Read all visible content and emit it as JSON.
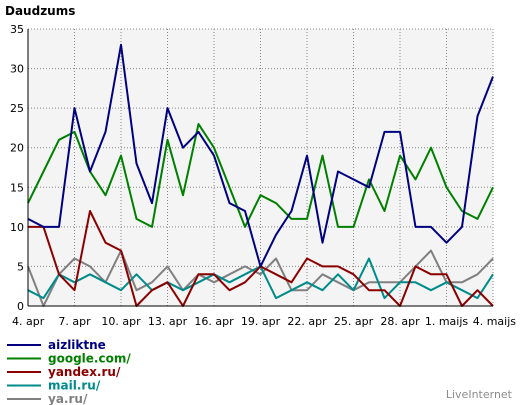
{
  "chart_data": {
    "type": "line",
    "ylabel": "Daudzums",
    "ylim": [
      0,
      35
    ],
    "y_ticks": [
      0,
      5,
      10,
      15,
      20,
      25,
      30,
      35
    ],
    "grid": "dotted",
    "x_tick_labels": [
      "4. apr",
      "7. apr",
      "10. apr",
      "13. apr",
      "16. apr",
      "19. apr",
      "22. apr",
      "25. apr",
      "28. apr",
      "1. maijs",
      "4. maijs"
    ],
    "series": [
      {
        "name": "aizliktne",
        "color": "#000080",
        "values": [
          11,
          10,
          10,
          25,
          17,
          22,
          33,
          18,
          13,
          25,
          20,
          22,
          19,
          13,
          12,
          5,
          9,
          12,
          19,
          8,
          17,
          16,
          15,
          22,
          22,
          10,
          10,
          8,
          10,
          24,
          29
        ]
      },
      {
        "name": "google.com/",
        "color": "#008000",
        "values": [
          13,
          17,
          21,
          22,
          17,
          14,
          19,
          11,
          10,
          21,
          14,
          23,
          20,
          15,
          10,
          14,
          13,
          11,
          11,
          19,
          10,
          10,
          16,
          12,
          19,
          16,
          20,
          15,
          12,
          11,
          15
        ]
      },
      {
        "name": "yandex.ru/",
        "color": "#8b0000",
        "values": [
          10,
          10,
          4,
          2,
          12,
          8,
          7,
          0,
          2,
          3,
          0,
          4,
          4,
          2,
          3,
          5,
          4,
          3,
          6,
          5,
          5,
          4,
          2,
          2,
          0,
          5,
          4,
          4,
          0,
          2,
          0
        ]
      },
      {
        "name": "mail.ru/",
        "color": "#008b8b",
        "values": [
          2,
          1,
          4,
          3,
          4,
          3,
          2,
          4,
          2,
          3,
          2,
          3,
          4,
          3,
          4,
          5,
          1,
          2,
          3,
          2,
          4,
          2,
          6,
          1,
          3,
          3,
          2,
          3,
          2,
          1,
          4
        ]
      },
      {
        "name": "ya.ru/",
        "color": "#808080",
        "values": [
          5,
          0,
          4,
          6,
          5,
          3,
          7,
          2,
          3,
          5,
          2,
          4,
          3,
          4,
          5,
          4,
          6,
          2,
          2,
          4,
          3,
          2,
          3,
          3,
          3,
          5,
          7,
          3,
          3,
          4,
          6
        ]
      }
    ]
  },
  "footer": {
    "credit": "LiveInternet"
  }
}
